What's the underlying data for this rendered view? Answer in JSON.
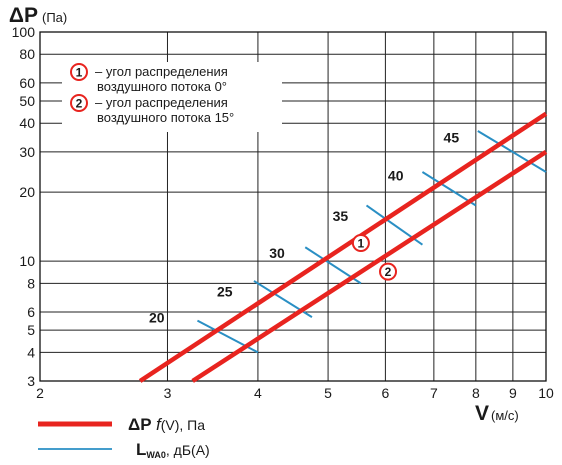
{
  "chart_data": {
    "type": "line",
    "x_scale": "log",
    "y_scale": "log",
    "xlabel": "V",
    "xunit": "(м/с)",
    "ylabel": "ΔP",
    "yunit": "(Па)",
    "xlim": [
      2,
      10
    ],
    "ylim": [
      3,
      100
    ],
    "grid": true,
    "x_ticks": [
      2,
      3,
      4,
      5,
      6,
      7,
      8,
      9,
      10
    ],
    "y_ticks": [
      3,
      4,
      5,
      6,
      8,
      10,
      20,
      30,
      40,
      50,
      60,
      80,
      100
    ],
    "series": [
      {
        "name": "1",
        "color": "#e8241f",
        "x": [
          2.75,
          10
        ],
        "y": [
          3,
          44
        ]
      },
      {
        "name": "2",
        "color": "#e8241f",
        "x": [
          3.25,
          10
        ],
        "y": [
          3,
          30
        ]
      }
    ],
    "series_labels": [
      {
        "text": "1",
        "x": 5.55,
        "y": 12.0
      },
      {
        "text": "2",
        "x": 6.05,
        "y": 9.0
      }
    ],
    "noise_levels": {
      "color": "#2a8fc4",
      "marks": [
        {
          "label": "20",
          "x1": 3.3,
          "y1": 5.5,
          "x2": 4.0,
          "y2": 4.0,
          "label_x": 2.9,
          "label_y": 5.4
        },
        {
          "label": "25",
          "x1": 3.95,
          "y1": 8.2,
          "x2": 4.75,
          "y2": 5.7,
          "label_x": 3.6,
          "label_y": 7.0
        },
        {
          "label": "30",
          "x1": 4.65,
          "y1": 11.5,
          "x2": 5.55,
          "y2": 8.0,
          "label_x": 4.25,
          "label_y": 10.3
        },
        {
          "label": "35",
          "x1": 5.65,
          "y1": 17.5,
          "x2": 6.75,
          "y2": 11.8,
          "label_x": 5.2,
          "label_y": 15.0
        },
        {
          "label": "40",
          "x1": 6.75,
          "y1": 24.5,
          "x2": 8.0,
          "y2": 17.5,
          "label_x": 6.2,
          "label_y": 22.5
        },
        {
          "label": "45",
          "x1": 8.05,
          "y1": 37.0,
          "x2": 10.0,
          "y2": 24.5,
          "label_x": 7.4,
          "label_y": 33.0
        }
      ]
    },
    "notes": [
      {
        "num": "1",
        "line1": "– угол распределения",
        "line2": "воздушного потока 0°"
      },
      {
        "num": "2",
        "line1": "– угол распределения",
        "line2": "воздушного потока 15°"
      }
    ],
    "legend": [
      {
        "prefix": "ΔP",
        "func": "f",
        "rest": "(V), Па",
        "color": "#e8241f"
      },
      {
        "prefix": "L",
        "sub": "WA0",
        "rest": ", дБ(А)",
        "color": "#2a8fc4"
      }
    ]
  }
}
